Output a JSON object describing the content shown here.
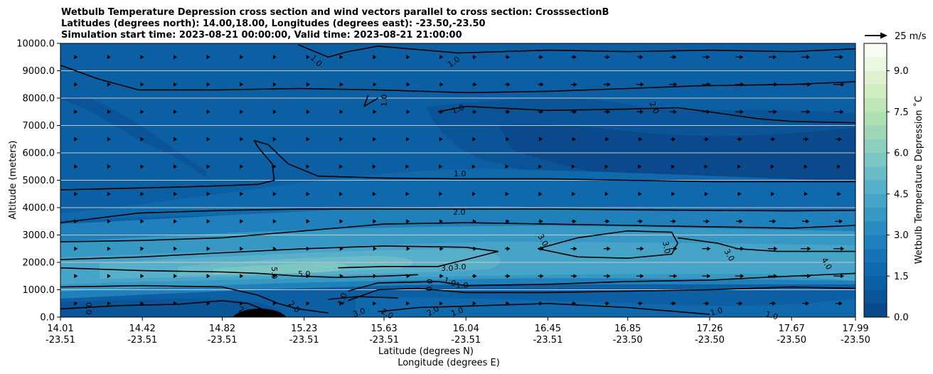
{
  "chart_data": {
    "type": "contour",
    "title_lines": [
      "Wetbulb Temperature Depression cross section and wind vectors parallel to cross section: CrosssectionB",
      "Latitudes (degrees north): 14.00,18.00, Longitudes (degrees east): -23.50,-23.50",
      "Simulation start time: 2023-08-21 00:00:00, Valid time: 2023-08-21 21:00:00"
    ],
    "ylabel": "Altitude (meters)",
    "xlabel_lines": [
      "Latitude (degrees N)",
      "Longitude (degrees E)"
    ],
    "ylim": [
      0,
      10000
    ],
    "y_ticks": [
      "0.0",
      "1000.0",
      "2000.0",
      "3000.0",
      "4000.0",
      "5000.0",
      "6000.0",
      "7000.0",
      "8000.0",
      "9000.0",
      "10000.0"
    ],
    "x_ticks": [
      {
        "lat": "14.01",
        "lon": "-23.51"
      },
      {
        "lat": "14.42",
        "lon": "-23.51"
      },
      {
        "lat": "14.82",
        "lon": "-23.51"
      },
      {
        "lat": "15.23",
        "lon": "-23.51"
      },
      {
        "lat": "15.63",
        "lon": "-23.51"
      },
      {
        "lat": "16.04",
        "lon": "-23.51"
      },
      {
        "lat": "16.45",
        "lon": "-23.51"
      },
      {
        "lat": "16.85",
        "lon": "-23.50"
      },
      {
        "lat": "17.26",
        "lon": "-23.50"
      },
      {
        "lat": "17.67",
        "lon": "-23.50"
      },
      {
        "lat": "17.99",
        "lon": "-23.50"
      }
    ],
    "colorbar": {
      "label": "Wetbulb Temperature Depression ˚C",
      "range": [
        0,
        10
      ],
      "ticks": [
        "0.0",
        "1.5",
        "3.0",
        "4.5",
        "6.0",
        "7.5",
        "9.0"
      ],
      "colors": [
        "#0a4a8c",
        "#0b5497",
        "#0d5fa3",
        "#1169ad",
        "#1873b4",
        "#2080bb",
        "#2a8cc0",
        "#3898c4",
        "#47a4c8",
        "#58afc9",
        "#6abbc7",
        "#7cc6c3",
        "#8dcfbe",
        "#9ed7b8",
        "#afdfb4",
        "#c0e6b7",
        "#d0ecc0",
        "#dff2d0",
        "#ecf7e2",
        "#f7fcf0"
      ]
    },
    "wind_key": {
      "label": "25 m/s",
      "speed": 25
    },
    "contour_labels": [
      "0.0",
      "1.0",
      "2.0",
      "3.0",
      "4.0",
      "5.0"
    ],
    "reference_lines": [
      {
        "value": 1.0,
        "path": [
          [
            14.01,
            4650
          ],
          [
            14.3,
            4700
          ],
          [
            14.6,
            4750
          ],
          [
            14.82,
            4800
          ],
          [
            15.0,
            4850
          ],
          [
            15.08,
            5000
          ],
          [
            15.07,
            5600
          ],
          [
            15.0,
            6200
          ],
          [
            14.98,
            6450
          ],
          [
            15.05,
            6300
          ],
          [
            15.15,
            5600
          ],
          [
            15.3,
            5150
          ],
          [
            15.63,
            5080
          ],
          [
            16.04,
            5050
          ],
          [
            16.45,
            5050
          ],
          [
            16.85,
            5000
          ],
          [
            17.26,
            4950
          ],
          [
            17.67,
            4950
          ],
          [
            17.99,
            4950
          ]
        ]
      },
      {
        "value": 1.0,
        "path": [
          [
            14.01,
            9200
          ],
          [
            14.2,
            8700
          ],
          [
            14.4,
            8300
          ],
          [
            14.8,
            8300
          ],
          [
            15.2,
            8350
          ],
          [
            15.6,
            8300
          ],
          [
            16.04,
            8200
          ],
          [
            16.45,
            8250
          ],
          [
            16.85,
            8350
          ],
          [
            17.2,
            8450
          ],
          [
            17.67,
            8500
          ],
          [
            17.99,
            8600
          ]
        ]
      },
      {
        "value": 1.0,
        "path": [
          [
            15.9,
            7500
          ],
          [
            16.04,
            7700
          ],
          [
            16.45,
            7550
          ],
          [
            16.85,
            7600
          ],
          [
            17.1,
            7650
          ],
          [
            17.26,
            7500
          ],
          [
            17.5,
            7250
          ],
          [
            17.67,
            7150
          ],
          [
            17.99,
            7100
          ]
        ]
      },
      {
        "value": 1.0,
        "path": [
          [
            15.2,
            9950
          ],
          [
            15.35,
            9500
          ],
          [
            15.45,
            9700
          ],
          [
            15.6,
            9900
          ],
          [
            16.0,
            9650
          ],
          [
            16.45,
            9750
          ],
          [
            16.85,
            9700
          ],
          [
            17.26,
            9750
          ],
          [
            17.67,
            9700
          ],
          [
            17.99,
            9800
          ]
        ]
      },
      {
        "value": 2.0,
        "path": [
          [
            14.01,
            3450
          ],
          [
            14.4,
            3800
          ],
          [
            14.82,
            3900
          ],
          [
            15.23,
            3950
          ],
          [
            15.63,
            3950
          ],
          [
            16.04,
            3950
          ],
          [
            16.45,
            3950
          ],
          [
            16.85,
            3920
          ],
          [
            17.26,
            3900
          ],
          [
            17.67,
            3880
          ],
          [
            17.99,
            3900
          ]
        ]
      },
      {
        "value": 2.0,
        "path": [
          [
            14.01,
            2750
          ],
          [
            14.42,
            2800
          ],
          [
            14.82,
            2900
          ],
          [
            15.23,
            3150
          ],
          [
            15.63,
            3400
          ],
          [
            16.04,
            3450
          ],
          [
            16.45,
            3400
          ],
          [
            16.85,
            3350
          ],
          [
            17.26,
            3300
          ],
          [
            17.67,
            3250
          ],
          [
            17.99,
            3350
          ]
        ]
      },
      {
        "value": 3.0,
        "path": [
          [
            14.01,
            2100
          ],
          [
            14.42,
            2200
          ],
          [
            14.82,
            2350
          ],
          [
            15.23,
            2500
          ],
          [
            15.63,
            2600
          ],
          [
            16.04,
            2550
          ],
          [
            16.2,
            2400
          ],
          [
            16.04,
            2100
          ],
          [
            15.9,
            1850
          ],
          [
            15.63,
            1850
          ],
          [
            15.4,
            1800
          ]
        ]
      },
      {
        "value": 3.0,
        "path": [
          [
            16.4,
            2500
          ],
          [
            16.6,
            2900
          ],
          [
            16.85,
            3150
          ],
          [
            17.07,
            3100
          ],
          [
            17.1,
            2700
          ],
          [
            17.07,
            2300
          ],
          [
            16.85,
            2150
          ],
          [
            16.6,
            2200
          ],
          [
            16.4,
            2500
          ]
        ]
      },
      {
        "value": 3.0,
        "path": [
          [
            17.1,
            2900
          ],
          [
            17.3,
            2700
          ],
          [
            17.4,
            2500
          ],
          [
            17.6,
            2400
          ],
          [
            17.99,
            2400
          ]
        ]
      },
      {
        "value": 5.0,
        "path": [
          [
            14.01,
            1800
          ],
          [
            14.42,
            1700
          ],
          [
            14.82,
            1650
          ],
          [
            15.0,
            1600
          ],
          [
            15.2,
            1500
          ],
          [
            15.4,
            1450
          ],
          [
            15.63,
            1500
          ],
          [
            15.8,
            1550
          ]
        ]
      },
      {
        "value": 2.0,
        "path": [
          [
            14.01,
            1100
          ],
          [
            14.42,
            1150
          ],
          [
            14.82,
            1100
          ],
          [
            15.0,
            800
          ],
          [
            15.1,
            500
          ],
          [
            15.2,
            300
          ],
          [
            15.35,
            150
          ]
        ]
      },
      {
        "value": 0.0,
        "path": [
          [
            14.01,
            300
          ],
          [
            14.3,
            420
          ],
          [
            14.6,
            470
          ],
          [
            14.82,
            600
          ],
          [
            14.95,
            500
          ],
          [
            15.05,
            200
          ],
          [
            15.0,
            50
          ]
        ]
      },
      {
        "value": 1.0,
        "path": [
          [
            15.6,
            200
          ],
          [
            15.8,
            350
          ],
          [
            16.04,
            400
          ],
          [
            16.45,
            500
          ],
          [
            16.85,
            350
          ],
          [
            17.26,
            100
          ]
        ]
      },
      {
        "value": 2.0,
        "path": [
          [
            15.45,
            600
          ],
          [
            15.6,
            1000
          ],
          [
            15.8,
            1050
          ],
          [
            16.04,
            900
          ],
          [
            16.45,
            900
          ],
          [
            16.85,
            950
          ],
          [
            17.26,
            1000
          ],
          [
            17.67,
            1100
          ],
          [
            17.99,
            1050
          ]
        ]
      },
      {
        "value": 4.0,
        "path": [
          [
            15.45,
            950
          ],
          [
            15.6,
            1250
          ],
          [
            15.9,
            1300
          ],
          [
            16.04,
            1150
          ],
          [
            16.45,
            1200
          ],
          [
            16.85,
            1300
          ],
          [
            17.26,
            1350
          ],
          [
            17.67,
            1500
          ],
          [
            17.99,
            1600
          ]
        ]
      },
      {
        "value": 1.0,
        "path": [
          [
            15.35,
            650
          ],
          [
            15.5,
            750
          ],
          [
            15.7,
            700
          ]
        ]
      },
      {
        "value": 1.0,
        "path": [
          [
            15.55,
            8100
          ],
          [
            15.53,
            7700
          ],
          [
            15.6,
            8000
          ]
        ]
      }
    ]
  }
}
